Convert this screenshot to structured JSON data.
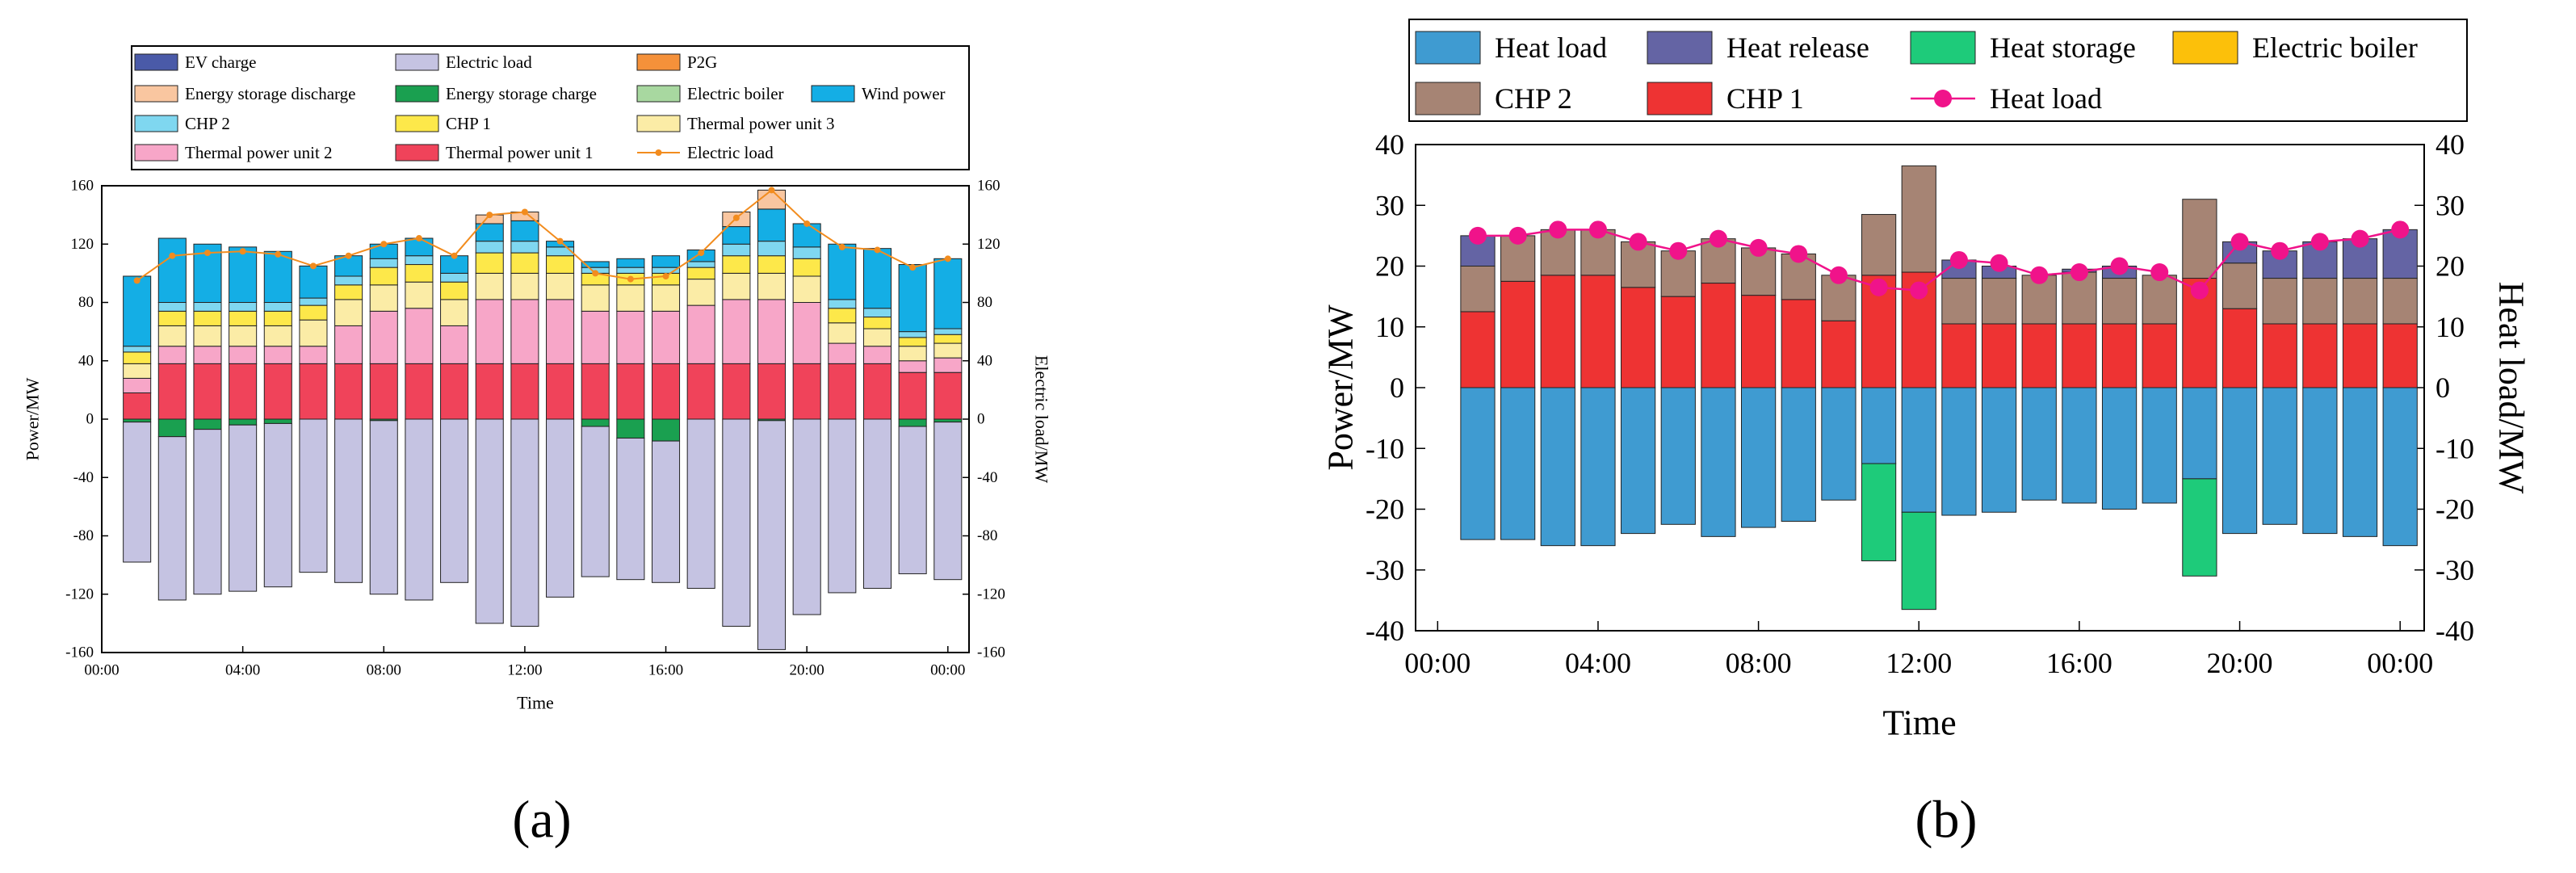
{
  "chart_data": [
    {
      "type": "bar",
      "stacked": true,
      "panel_label": "(a)",
      "x_label": "Time",
      "y_label": "Power/MW",
      "y2_label": "Electric load/MW",
      "x": [
        1,
        2,
        3,
        4,
        5,
        6,
        7,
        8,
        9,
        10,
        11,
        12,
        13,
        14,
        15,
        16,
        17,
        18,
        19,
        20,
        21,
        22,
        23,
        24
      ],
      "xlim": [
        0,
        24.6
      ],
      "xticks": [
        {
          "value": 0,
          "label": "00:00"
        },
        {
          "value": 4,
          "label": "04:00"
        },
        {
          "value": 8,
          "label": "08:00"
        },
        {
          "value": 12,
          "label": "12:00"
        },
        {
          "value": 16,
          "label": "16:00"
        },
        {
          "value": 20,
          "label": "20:00"
        },
        {
          "value": 24,
          "label": "00:00"
        }
      ],
      "ylim": [
        -160,
        160
      ],
      "yticks": [
        -160,
        -120,
        -80,
        -40,
        0,
        40,
        80,
        120,
        160
      ],
      "y2lim": [
        -160,
        160
      ],
      "y2ticks": [
        -160,
        -120,
        -80,
        -40,
        0,
        40,
        80,
        120,
        160
      ],
      "series": [
        {
          "name": "EV charge",
          "color": "#4a5aa8",
          "values": [
            0,
            0,
            0,
            0,
            0,
            0,
            0,
            0,
            0,
            0,
            0,
            0,
            0,
            0,
            0,
            0,
            0,
            0,
            0,
            0,
            0,
            0,
            0,
            0
          ]
        },
        {
          "name": "Electric load",
          "color": "#c5c3e2",
          "values": [
            -96,
            -112,
            -113,
            -114,
            -112,
            -105,
            -112,
            -119,
            -124,
            -112,
            -140,
            -142,
            -122,
            -103,
            -97,
            -97,
            -116,
            -142,
            -157,
            -134,
            -119,
            -116,
            -101,
            -108
          ]
        },
        {
          "name": "P2G",
          "color": "#f5913a",
          "values": [
            0,
            0,
            0,
            0,
            0,
            0,
            0,
            0,
            0,
            0,
            0,
            0,
            0,
            0,
            0,
            0,
            0,
            0,
            0,
            0,
            0,
            0,
            0,
            0
          ]
        },
        {
          "name": "Energy storage discharge",
          "color": "#f9c6a0",
          "values": [
            0,
            0,
            0,
            0,
            0,
            0,
            0,
            0,
            0,
            0,
            6,
            6,
            0,
            0,
            0,
            0,
            0,
            10,
            13,
            0,
            0,
            0,
            0,
            0
          ]
        },
        {
          "name": "Energy storage charge",
          "color": "#1aa050",
          "values": [
            -2,
            -12,
            -7,
            -4,
            -3,
            0,
            0,
            -1,
            0,
            0,
            0,
            0,
            0,
            -5,
            -13,
            -15,
            0,
            0,
            -1,
            0,
            0,
            0,
            -5,
            -2
          ]
        },
        {
          "name": "Electric boiler",
          "color": "#a8d8a0",
          "values": [
            0,
            0,
            0,
            0,
            0,
            0,
            0,
            0,
            0,
            0,
            0,
            0,
            0,
            0,
            0,
            0,
            0,
            0,
            0,
            0,
            0,
            0,
            0,
            0
          ]
        },
        {
          "name": "Wind power",
          "color": "#14aee5",
          "values": [
            48,
            44,
            40,
            38,
            35,
            22,
            14,
            10,
            12,
            12,
            12,
            14,
            4,
            4,
            6,
            8,
            8,
            12,
            22,
            16,
            38,
            41,
            46,
            48
          ]
        },
        {
          "name": "CHP 2",
          "color": "#7fd7f0",
          "values": [
            4,
            6,
            6,
            6,
            6,
            5,
            6,
            6,
            6,
            6,
            8,
            8,
            6,
            4,
            4,
            4,
            4,
            8,
            10,
            8,
            6,
            6,
            4,
            4
          ]
        },
        {
          "name": "CHP 1",
          "color": "#fde84a",
          "values": [
            8,
            10,
            10,
            10,
            10,
            10,
            10,
            12,
            12,
            12,
            14,
            14,
            12,
            8,
            8,
            8,
            8,
            12,
            12,
            12,
            10,
            8,
            6,
            6
          ]
        },
        {
          "name": "Thermal power unit 3",
          "color": "#fbeca6",
          "values": [
            10,
            14,
            14,
            14,
            14,
            18,
            18,
            18,
            18,
            18,
            18,
            18,
            18,
            18,
            18,
            18,
            18,
            18,
            18,
            18,
            14,
            12,
            10,
            10
          ]
        },
        {
          "name": "Thermal power unit 2",
          "color": "#f7a6c8",
          "values": [
            10,
            12,
            12,
            12,
            12,
            12,
            26,
            36,
            38,
            26,
            44,
            44,
            44,
            36,
            36,
            36,
            40,
            44,
            44,
            42,
            14,
            12,
            8,
            10
          ]
        },
        {
          "name": "Thermal power unit 1",
          "color": "#f0435a",
          "values": [
            18,
            38,
            38,
            38,
            38,
            38,
            38,
            38,
            38,
            38,
            38,
            38,
            38,
            38,
            38,
            38,
            38,
            38,
            38,
            38,
            38,
            38,
            32,
            32
          ]
        },
        {
          "name": "Electric load",
          "type": "line",
          "axis": "y2",
          "color": "#f28c1e",
          "values": [
            95,
            112,
            114,
            115,
            113,
            105,
            112,
            120,
            124,
            112,
            140,
            142,
            122,
            100,
            96,
            98,
            114,
            138,
            157,
            134,
            118,
            116,
            104,
            110
          ]
        }
      ]
    },
    {
      "type": "bar",
      "stacked": true,
      "panel_label": "(b)",
      "x_label": "Time",
      "y_label": "Power/MW",
      "y2_label": "Heat load/MW",
      "x": [
        1,
        2,
        3,
        4,
        5,
        6,
        7,
        8,
        9,
        10,
        11,
        12,
        13,
        14,
        15,
        16,
        17,
        18,
        19,
        20,
        21,
        22,
        23,
        24
      ],
      "xlim": [
        -0.55,
        24.6
      ],
      "xticks": [
        {
          "value": 0,
          "label": "00:00"
        },
        {
          "value": 4,
          "label": "04:00"
        },
        {
          "value": 8,
          "label": "08:00"
        },
        {
          "value": 12,
          "label": "12:00"
        },
        {
          "value": 16,
          "label": "16:00"
        },
        {
          "value": 20,
          "label": "20:00"
        },
        {
          "value": 24,
          "label": "00:00"
        }
      ],
      "ylim": [
        -40,
        40
      ],
      "yticks": [
        -40,
        -30,
        -20,
        -10,
        0,
        10,
        20,
        30,
        40
      ],
      "y2lim": [
        -40,
        40
      ],
      "y2ticks": [
        -40,
        -30,
        -20,
        -10,
        0,
        10,
        20,
        30,
        40
      ],
      "series": [
        {
          "name": "Heat load",
          "color": "#3f9bd1",
          "values": [
            -25,
            -25,
            -26,
            -26,
            -24,
            -22.5,
            -24.5,
            -23,
            -22,
            -18.5,
            -12.5,
            -20.5,
            -21,
            -20.5,
            -18.5,
            -19,
            -20,
            -19,
            -15,
            -24,
            -22.5,
            -24,
            -24.5,
            -26
          ]
        },
        {
          "name": "Heat release",
          "color": "#6464a4",
          "values": [
            5,
            0,
            0,
            0,
            0,
            0,
            0,
            0,
            0,
            0,
            0,
            0,
            3,
            2,
            0,
            0.5,
            2,
            0,
            0,
            3.5,
            4.5,
            6,
            6.5,
            8
          ]
        },
        {
          "name": "Heat storage",
          "color": "#1ecb7a",
          "values": [
            0,
            0,
            0,
            0,
            0,
            0,
            0,
            0,
            0,
            0,
            -16,
            -16,
            0,
            0,
            0,
            0,
            0,
            0,
            -16,
            0,
            0,
            0,
            0,
            0
          ]
        },
        {
          "name": "Electric boiler",
          "color": "#fcc00a",
          "values": [
            0,
            0,
            0,
            0,
            0,
            0,
            0,
            0,
            0,
            0,
            0,
            0,
            0,
            0,
            0,
            0,
            0,
            0,
            0,
            0,
            0,
            0,
            0,
            0
          ]
        },
        {
          "name": "CHP 2",
          "color": "#a68474",
          "values": [
            7.5,
            7.5,
            7.5,
            7.5,
            7.5,
            7.5,
            7.3,
            7.8,
            7.5,
            7.5,
            10,
            17.5,
            7.5,
            7.5,
            8,
            8.5,
            7.5,
            8,
            13,
            7.5,
            7.5,
            7.5,
            7.5,
            7.5
          ]
        },
        {
          "name": "CHP 1",
          "color": "#ee3333",
          "values": [
            12.5,
            17.5,
            18.5,
            18.5,
            16.5,
            15,
            17.2,
            15.2,
            14.5,
            11,
            18.5,
            19,
            10.5,
            10.5,
            10.5,
            10.5,
            10.5,
            10.5,
            18,
            13,
            10.5,
            10.5,
            10.5,
            10.5
          ]
        },
        {
          "name": "Heat load",
          "type": "line",
          "axis": "y2",
          "color": "#f0138a",
          "values": [
            25,
            25,
            26,
            26,
            24,
            22.5,
            24.5,
            23,
            22,
            18.5,
            16.5,
            16,
            21,
            20.5,
            18.5,
            19,
            20,
            19,
            16,
            24,
            22.5,
            24,
            24.5,
            26
          ]
        }
      ]
    }
  ]
}
